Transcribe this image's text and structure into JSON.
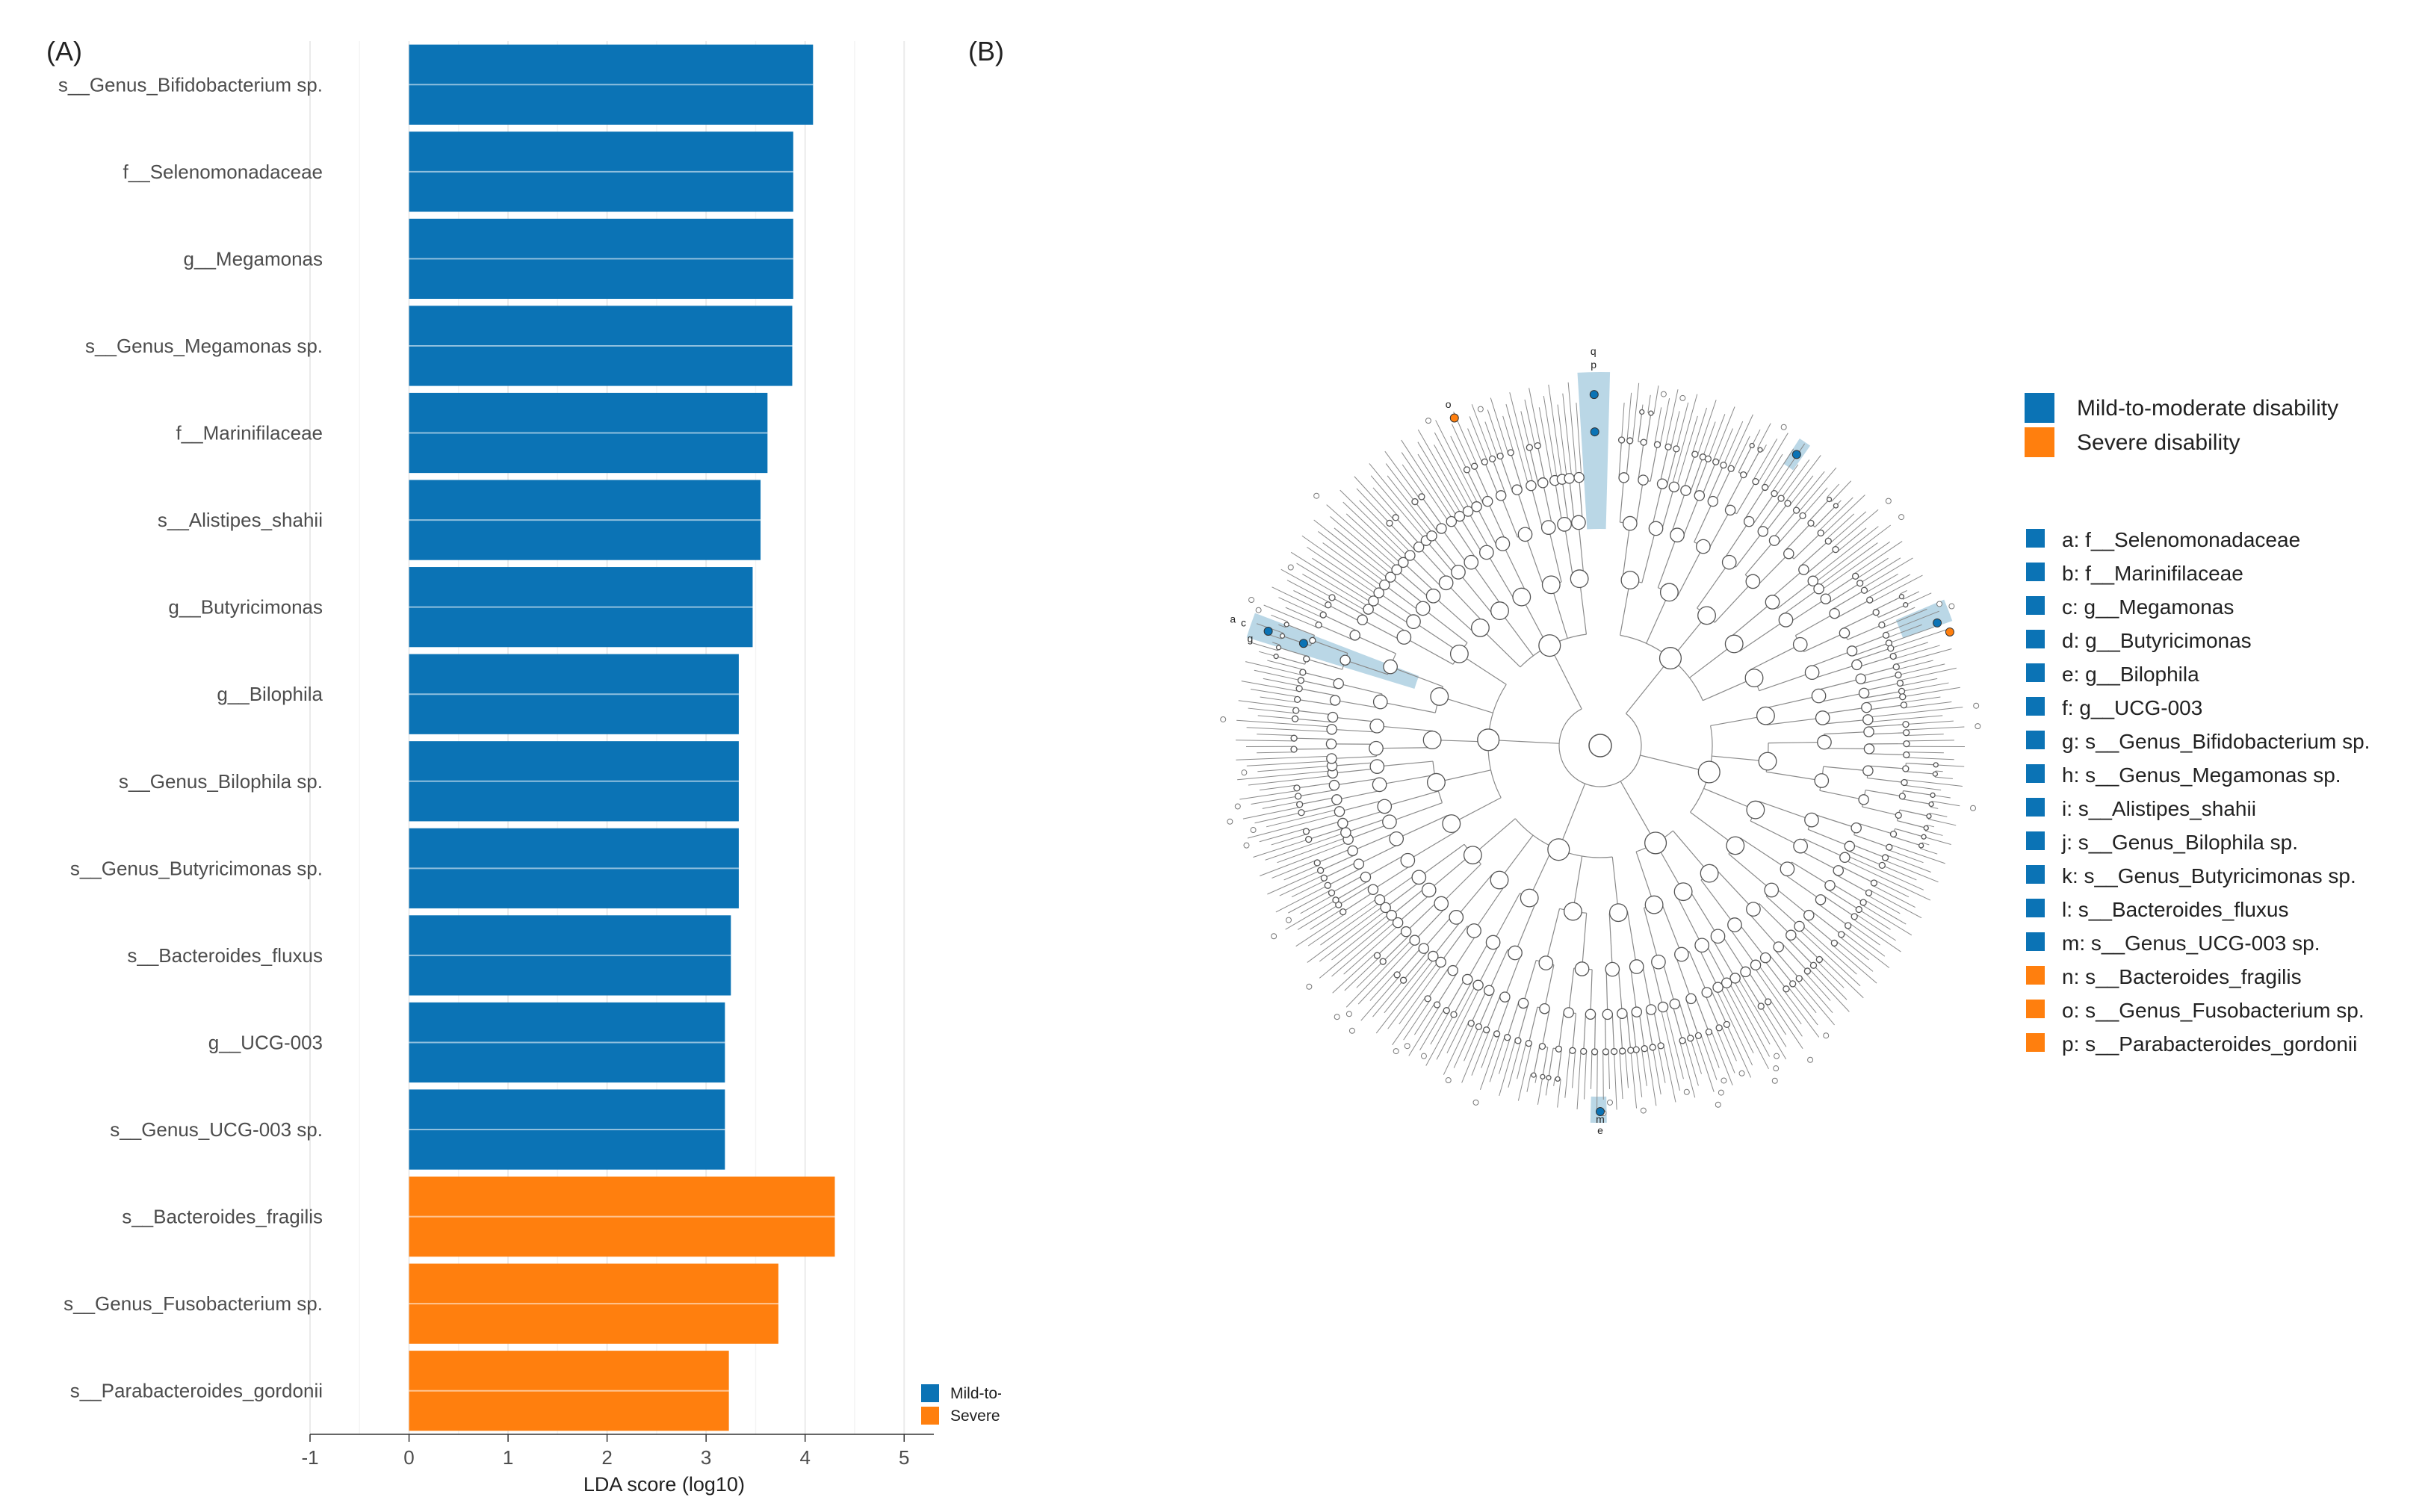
{
  "panels": {
    "a_label": "(A)",
    "b_label": "(B)"
  },
  "colors": {
    "mild": "#0b73b5",
    "severe": "#ff7f0e",
    "highlight": "#aed0e2",
    "grid": "#ebebeb",
    "tree": "#8a8a8a"
  },
  "chart_data": {
    "type": "bar",
    "orientation": "horizontal",
    "xlabel": "LDA score (log10)",
    "xlim": [
      -1,
      5.3
    ],
    "xticks": [
      -1,
      0,
      1,
      2,
      3,
      4,
      5
    ],
    "categories": [
      "s__Genus_Bifidobacterium sp.",
      "f__Selenomonadaceae",
      "g__Megamonas",
      "s__Genus_Megamonas sp.",
      "f__Marinifilaceae",
      "s__Alistipes_shahii",
      "g__Butyricimonas",
      "g__Bilophila",
      "s__Genus_Bilophila sp.",
      "s__Genus_Butyricimonas sp.",
      "s__Bacteroides_fluxus",
      "g__UCG-003",
      "s__Genus_UCG-003 sp.",
      "s__Bacteroides_fragilis",
      "s__Genus_Fusobacterium sp.",
      "s__Parabacteroides_gordonii"
    ],
    "values": [
      4.08,
      3.88,
      3.88,
      3.87,
      3.62,
      3.55,
      3.47,
      3.33,
      3.33,
      3.33,
      3.25,
      3.19,
      3.19,
      4.3,
      3.73,
      3.23
    ],
    "groups": [
      "mild",
      "mild",
      "mild",
      "mild",
      "mild",
      "mild",
      "mild",
      "mild",
      "mild",
      "mild",
      "mild",
      "mild",
      "mild",
      "severe",
      "severe",
      "severe"
    ],
    "legend": [
      {
        "name": "Mild-to-moderate disability",
        "group": "mild"
      },
      {
        "name": "Severe disability",
        "group": "severe"
      }
    ],
    "legend_position": "bottom-right"
  },
  "cladogram": {
    "group_legend": [
      {
        "name": "Mild-to-moderate disability",
        "group": "mild"
      },
      {
        "name": "Severe disability",
        "group": "severe"
      }
    ],
    "taxa": [
      {
        "text": "a: f__Selenomonadaceae",
        "group": "mild"
      },
      {
        "text": "b: f__Marinifilaceae",
        "group": "mild"
      },
      {
        "text": "c: g__Megamonas",
        "group": "mild"
      },
      {
        "text": "d: g__Butyricimonas",
        "group": "mild"
      },
      {
        "text": "e: g__Bilophila",
        "group": "mild"
      },
      {
        "text": "f: g__UCG-003",
        "group": "mild"
      },
      {
        "text": "g: s__Genus_Bifidobacterium sp.",
        "group": "mild"
      },
      {
        "text": "h: s__Genus_Megamonas sp.",
        "group": "mild"
      },
      {
        "text": "i: s__Alistipes_shahii",
        "group": "mild"
      },
      {
        "text": "j: s__Genus_Bilophila sp.",
        "group": "mild"
      },
      {
        "text": "k: s__Genus_Butyricimonas sp.",
        "group": "mild"
      },
      {
        "text": "l: s__Bacteroides_fluxus",
        "group": "mild"
      },
      {
        "text": "m: s__Genus_UCG-003 sp.",
        "group": "mild"
      },
      {
        "text": "n: s__Bacteroides_fragilis",
        "group": "severe"
      },
      {
        "text": "o: s__Genus_Fusobacterium sp.",
        "group": "severe"
      },
      {
        "text": "p: s__Parabacteroides_gordonii",
        "group": "severe"
      }
    ],
    "node_letters": [
      "q",
      "p",
      "a",
      "c",
      "g",
      "m",
      "e",
      "o"
    ]
  }
}
